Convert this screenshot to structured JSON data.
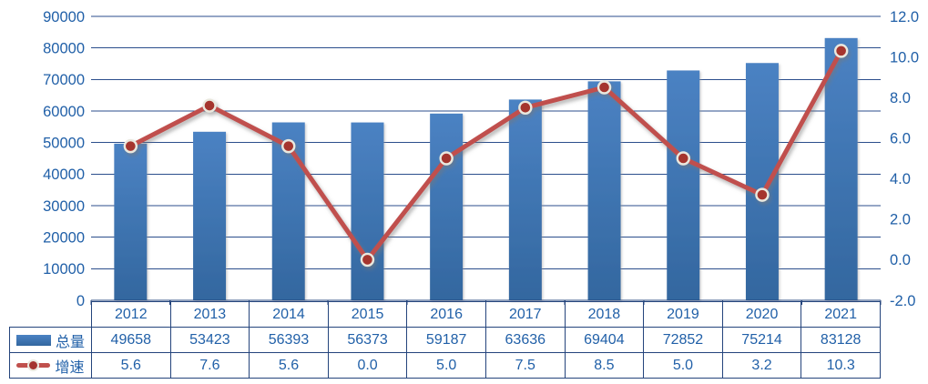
{
  "chart_data": {
    "type": "combo-bar-line",
    "title": "",
    "xlabel": "",
    "ylabel": "",
    "categories": [
      "2012",
      "2013",
      "2014",
      "2015",
      "2016",
      "2017",
      "2018",
      "2019",
      "2020",
      "2021"
    ],
    "series": [
      {
        "name": "总量",
        "type": "bar",
        "axis": "left",
        "values": [
          49658,
          53423,
          56393,
          56373,
          59187,
          63636,
          69404,
          72852,
          75214,
          83128
        ],
        "display": [
          "49658",
          "53423",
          "56393",
          "56373",
          "59187",
          "63636",
          "69404",
          "72852",
          "75214",
          "83128"
        ]
      },
      {
        "name": "增速",
        "type": "line",
        "axis": "right",
        "values": [
          5.6,
          7.6,
          5.6,
          0.0,
          5.0,
          7.5,
          8.5,
          5.0,
          3.2,
          10.3
        ],
        "display": [
          "5.6",
          "7.6",
          "5.6",
          "0.0",
          "5.0",
          "7.5",
          "8.5",
          "5.0",
          "3.2",
          "10.3"
        ]
      }
    ],
    "left_axis": {
      "min": 0,
      "max": 90000,
      "step": 10000,
      "tick_labels": [
        "0",
        "10000",
        "20000",
        "30000",
        "40000",
        "50000",
        "60000",
        "70000",
        "80000",
        "90000"
      ]
    },
    "right_axis": {
      "min": -2,
      "max": 12,
      "step": 2,
      "tick_labels": [
        "-2.0",
        "0.0",
        "2.0",
        "4.0",
        "6.0",
        "8.0",
        "10.0",
        "12.0"
      ]
    },
    "grid": "horizontal (from left axis)",
    "legend_position": "table-left-column"
  },
  "colors": {
    "text": "#2160A8",
    "gridline": "#2B4E8C",
    "axis_line": "#24447C",
    "table_border": "#24447C",
    "bar_top": "#4B82C3",
    "bar_bottom": "#33679F",
    "line": "#C0504D",
    "marker_fill": "#A5342F",
    "marker_ring": "#EAE8DE"
  }
}
